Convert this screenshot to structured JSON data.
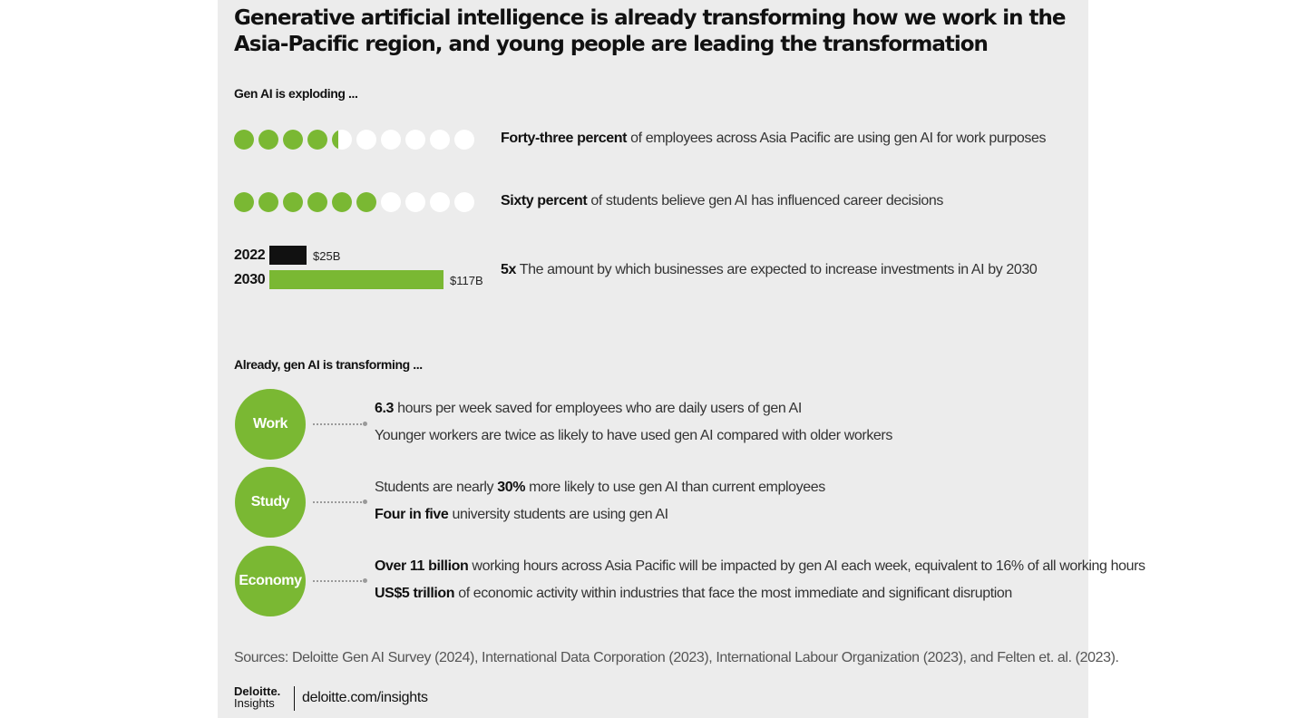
{
  "title": "Generative artificial intelligence is already transforming how we work in the Asia-Pacific region, and young people are leading the transformation",
  "section1_label": "Gen AI is exploding ...",
  "section2_label": "Already, gen AI is transforming ...",
  "colors": {
    "accent": "#7ab833",
    "dark": "#111111",
    "panel": "#ececec"
  },
  "chart_data": [
    {
      "type": "waffle",
      "total": 10,
      "filled": 4.3,
      "highlight": "Forty-three percent",
      "text": " of employees across Asia Pacific are using gen AI for work purposes"
    },
    {
      "type": "waffle",
      "total": 10,
      "filled": 6,
      "highlight": "Sixty percent",
      "text": " of students believe gen AI has influenced career decisions"
    },
    {
      "type": "bar",
      "orientation": "horizontal",
      "categories": [
        "2022",
        "2030"
      ],
      "values": [
        25,
        117
      ],
      "value_labels": [
        "$25B",
        "$117B"
      ],
      "colors": [
        "#111111",
        "#7ab833"
      ],
      "highlight": "5x",
      "text": " The amount by which businesses are expected to increase investments in AI by 2030"
    }
  ],
  "transforming": [
    {
      "label": "Work",
      "lines": [
        {
          "bold": "6.3",
          "rest": " hours per week saved for employees who are daily users of gen AI"
        },
        {
          "bold": "",
          "rest": "Younger workers are twice as likely to have used gen AI compared with older workers"
        }
      ]
    },
    {
      "label": "Study",
      "lines": [
        {
          "pre": "Students are nearly ",
          "bold": "30%",
          "rest": " more likely to use gen AI than current employees"
        },
        {
          "bold": "Four in five",
          "rest": " university students are using gen AI"
        }
      ]
    },
    {
      "label": "Economy",
      "lines": [
        {
          "bold": "Over 11 billion",
          "rest": " working hours across Asia Pacific will be impacted by gen AI each week, equivalent to 16% of all working hours"
        },
        {
          "bold": "US$5 trillion",
          "rest": " of economic activity within industries that face the most immediate and significant disruption"
        }
      ]
    }
  ],
  "sources": "Sources: Deloitte Gen AI Survey (2024), International Data Corporation (2023), International Labour Organization (2023), and Felten et. al. (2023).",
  "brand": {
    "name": "Deloitte.",
    "sub": "Insights",
    "url": "deloitte.com/insights"
  }
}
